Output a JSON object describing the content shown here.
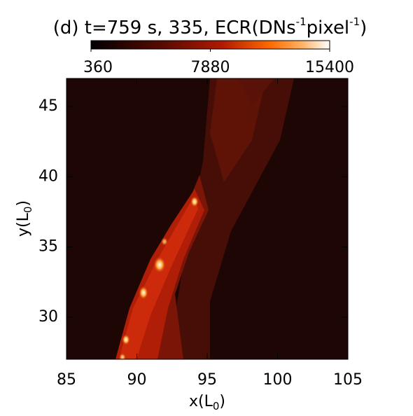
{
  "chart_data": {
    "type": "heatmap",
    "title": [
      {
        "text": "(d) t=759 s, 335, ECR(DNs"
      },
      {
        "sup": "-1"
      },
      {
        "text": "pixel"
      },
      {
        "sup": "-1"
      },
      {
        "text": ")"
      }
    ],
    "xlabel": [
      {
        "text": "x(L"
      },
      {
        "sub": "0"
      },
      {
        "text": ")"
      }
    ],
    "ylabel": [
      {
        "text": "y(L"
      },
      {
        "sub": "0"
      },
      {
        "text": ")"
      }
    ],
    "xlim": [
      85,
      105
    ],
    "xticks": [
      85,
      90,
      95,
      100,
      105
    ],
    "ylim": [
      27,
      47
    ],
    "yticks": [
      30,
      35,
      40,
      45
    ],
    "colorbar": {
      "clim": [
        360,
        15400
      ],
      "ticks": [
        360,
        7880,
        15400
      ]
    }
  }
}
